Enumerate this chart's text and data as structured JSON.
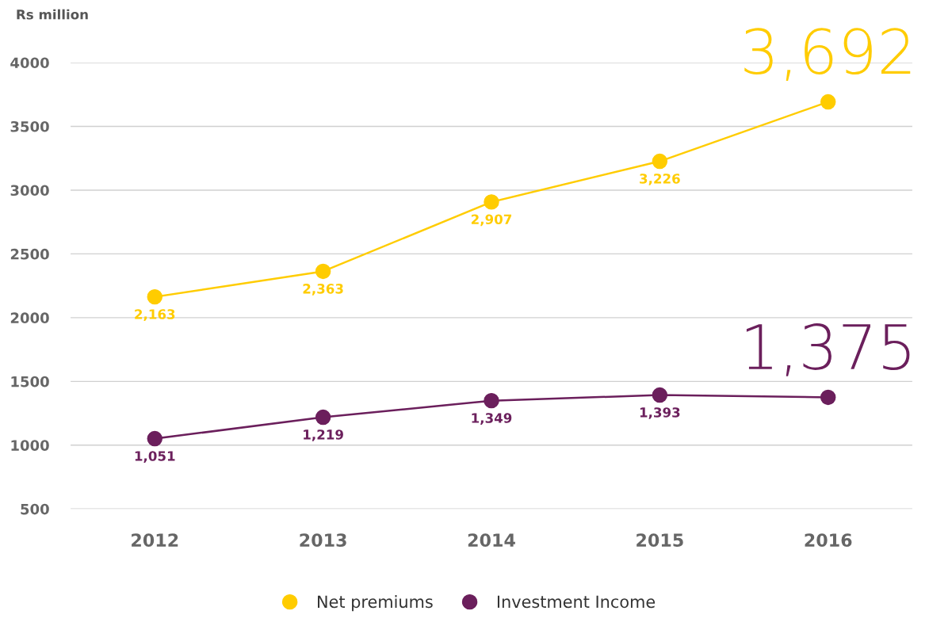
{
  "chart_data": {
    "type": "line",
    "ylabel": "Rs million",
    "categories": [
      "2012",
      "2013",
      "2014",
      "2015",
      "2016"
    ],
    "series": [
      {
        "name": "Net premiums",
        "color": "#ffcc00",
        "values": [
          2163,
          2363,
          2907,
          3226,
          3692
        ],
        "value_labels": [
          "2,163",
          "2,363",
          "2,907",
          "3,226",
          "3,692"
        ]
      },
      {
        "name": "Investment Income",
        "color": "#6b1f5c",
        "values": [
          1051,
          1219,
          1349,
          1393,
          1375
        ],
        "value_labels": [
          "1,051",
          "1,219",
          "1,349",
          "1,393",
          "1,375"
        ]
      }
    ],
    "ylim": [
      500,
      4000
    ],
    "yticks": [
      500,
      1000,
      1500,
      2000,
      2500,
      3000,
      3500,
      4000
    ],
    "grid": "y",
    "legend": "bottom",
    "marker": "circle",
    "line_style": "solid"
  }
}
